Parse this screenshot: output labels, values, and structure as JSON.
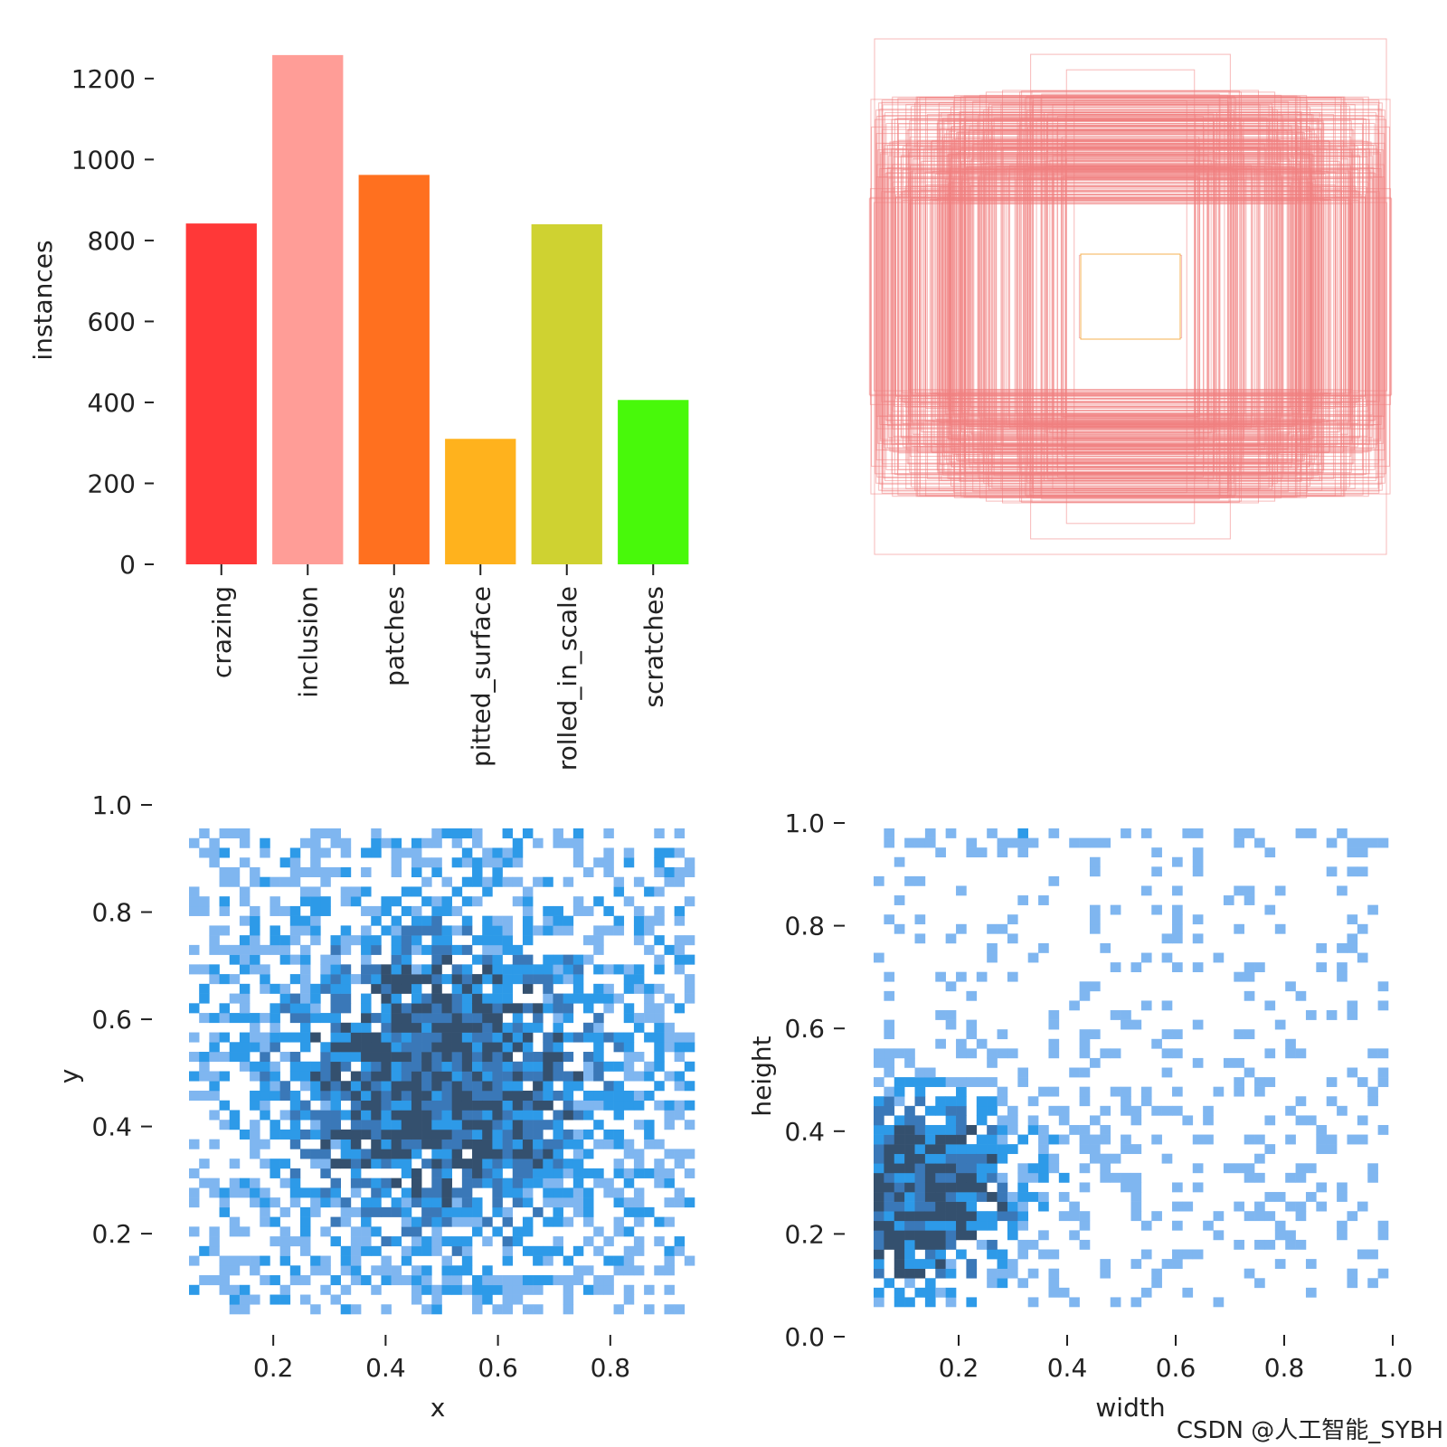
{
  "chart_data": [
    {
      "type": "bar",
      "categories": [
        "crazing",
        "inclusion",
        "patches",
        "pitted_surface",
        "rolled_in_scale",
        "scratches"
      ],
      "values": [
        842,
        1258,
        962,
        310,
        840,
        406
      ],
      "colors": [
        "#ff3838",
        "#ff9d97",
        "#ff701f",
        "#ffb21d",
        "#cfd231",
        "#48f90a"
      ],
      "xlabel": "",
      "ylabel": "instances",
      "ylim": [
        0,
        1260
      ],
      "yticks": [
        0,
        200,
        400,
        600,
        800,
        1000,
        1200
      ],
      "grid": false
    },
    {
      "type": "boxes",
      "description_boxes": [
        {
          "w": 1.0,
          "h": 1.0
        },
        {
          "w": 0.39,
          "h": 0.94
        },
        {
          "w": 0.69,
          "h": 0.76
        },
        {
          "w": 0.25,
          "h": 0.88
        },
        {
          "w": 0.5,
          "h": 0.8
        },
        {
          "w": 0.22,
          "h": 0.76
        },
        {
          "w": 0.94,
          "h": 0.6
        },
        {
          "w": 1.02,
          "h": 0.38
        },
        {
          "w": 0.74,
          "h": 0.58
        },
        {
          "w": 0.2,
          "h": 0.16
        }
      ],
      "box_color": "#f08080",
      "axes_visible": false
    },
    {
      "type": "heatmap",
      "xlabel": "x",
      "ylabel": "y",
      "xlim": [
        0.05,
        0.95
      ],
      "ylim": [
        0.05,
        1.0
      ],
      "xticks": [
        0.2,
        0.4,
        0.6,
        0.8
      ],
      "yticks": [
        0.2,
        0.4,
        0.6,
        0.8,
        1.0
      ],
      "bins": 50,
      "colors": [
        "#7fb6f0",
        "#2d9ae8",
        "#3a78b8",
        "#34506e"
      ]
    },
    {
      "type": "heatmap",
      "xlabel": "width",
      "ylabel": "height",
      "xlim": [
        0.0,
        1.0
      ],
      "ylim": [
        0.0,
        1.0
      ],
      "xticks": [
        0.2,
        0.4,
        0.6,
        0.8,
        1.0
      ],
      "yticks": [
        0.0,
        0.2,
        0.4,
        0.6,
        0.8,
        1.0
      ],
      "bins": 50,
      "colors": [
        "#7fb6f0",
        "#2d9ae8",
        "#3a78b8",
        "#34506e"
      ]
    }
  ],
  "watermark": "CSDN @人工智能_SYBH"
}
